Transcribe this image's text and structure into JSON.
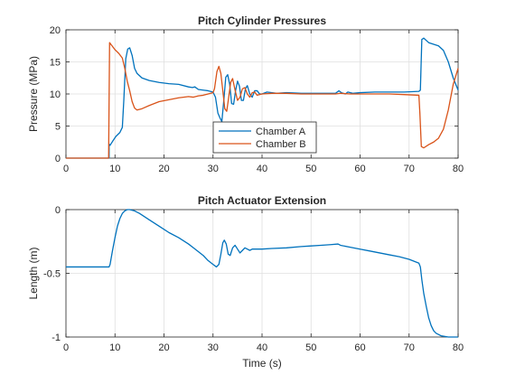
{
  "figure": {
    "background": "#ffffff",
    "axes_color": "#262626",
    "grid_color": "#dfdfdf"
  },
  "chart_data": [
    {
      "type": "line",
      "title": "Pitch Cylinder Pressures",
      "xlabel": "",
      "ylabel": "Pressure (MPa)",
      "xlim": [
        0,
        80
      ],
      "ylim": [
        0,
        20
      ],
      "xticks": [
        0,
        10,
        20,
        30,
        40,
        50,
        60,
        70,
        80
      ],
      "yticks": [
        0,
        5,
        10,
        15,
        20
      ],
      "grid": true,
      "legend": {
        "placement": "bottom-center",
        "entries": [
          "Chamber A",
          "Chamber B"
        ]
      },
      "series": [
        {
          "name": "Chamber A",
          "color": "#0072BD",
          "points": [
            [
              0,
              0
            ],
            [
              8.8,
              0
            ],
            [
              8.8,
              2.2
            ],
            [
              9.0,
              2.0
            ],
            [
              9.5,
              2.6
            ],
            [
              10.2,
              3.4
            ],
            [
              11.0,
              4.0
            ],
            [
              11.5,
              4.8
            ],
            [
              11.8,
              9.0
            ],
            [
              12.2,
              15.5
            ],
            [
              12.6,
              17.0
            ],
            [
              13.0,
              17.2
            ],
            [
              13.5,
              16.0
            ],
            [
              14.0,
              14.0
            ],
            [
              14.5,
              13.2
            ],
            [
              15.5,
              12.5
            ],
            [
              17,
              12.1
            ],
            [
              19,
              11.8
            ],
            [
              21,
              11.6
            ],
            [
              23,
              11.5
            ],
            [
              25,
              11.1
            ],
            [
              25.8,
              11.0
            ],
            [
              26.3,
              11.1
            ],
            [
              27,
              10.7
            ],
            [
              28,
              10.6
            ],
            [
              29,
              10.5
            ],
            [
              30,
              10.3
            ],
            [
              30.5,
              9.5
            ],
            [
              31,
              7.0
            ],
            [
              31.4,
              6.3
            ],
            [
              31.8,
              5.7
            ],
            [
              32.2,
              9.0
            ],
            [
              32.6,
              12.6
            ],
            [
              33.0,
              13.0
            ],
            [
              33.4,
              11.5
            ],
            [
              33.8,
              8.5
            ],
            [
              34.2,
              8.4
            ],
            [
              34.6,
              10.5
            ],
            [
              35.0,
              12.0
            ],
            [
              35.4,
              11.2
            ],
            [
              35.8,
              9.0
            ],
            [
              36.2,
              9.0
            ],
            [
              36.6,
              10.8
            ],
            [
              37.0,
              11.3
            ],
            [
              37.5,
              10.0
            ],
            [
              38.0,
              9.5
            ],
            [
              38.5,
              10.5
            ],
            [
              39.0,
              10.5
            ],
            [
              39.5,
              10.0
            ],
            [
              40,
              10.0
            ],
            [
              41,
              10.3
            ],
            [
              43,
              10.1
            ],
            [
              45,
              10.2
            ],
            [
              48,
              10.1
            ],
            [
              50,
              10.1
            ],
            [
              53,
              10.1
            ],
            [
              55,
              10.1
            ],
            [
              55.7,
              10.5
            ],
            [
              56.2,
              10.2
            ],
            [
              57,
              10.0
            ],
            [
              57.5,
              10.3
            ],
            [
              58.5,
              10.1
            ],
            [
              60,
              10.2
            ],
            [
              63,
              10.3
            ],
            [
              66,
              10.3
            ],
            [
              69,
              10.3
            ],
            [
              72,
              10.4
            ],
            [
              72.3,
              10.6
            ],
            [
              72.6,
              18.5
            ],
            [
              73.0,
              18.7
            ],
            [
              74,
              18.0
            ],
            [
              76,
              17.5
            ],
            [
              77,
              16.8
            ],
            [
              78,
              15.0
            ],
            [
              79,
              12.5
            ],
            [
              80,
              10.6
            ]
          ]
        },
        {
          "name": "Chamber B",
          "color": "#D95319",
          "points": [
            [
              0,
              0
            ],
            [
              8.7,
              0
            ],
            [
              8.9,
              18.0
            ],
            [
              9.3,
              17.6
            ],
            [
              10.0,
              16.9
            ],
            [
              10.8,
              16.3
            ],
            [
              11.5,
              15.6
            ],
            [
              12.0,
              14.0
            ],
            [
              12.5,
              12.0
            ],
            [
              13.0,
              10.5
            ],
            [
              13.5,
              8.8
            ],
            [
              14.0,
              7.8
            ],
            [
              14.5,
              7.5
            ],
            [
              15.5,
              7.7
            ],
            [
              17,
              8.2
            ],
            [
              19,
              8.8
            ],
            [
              21,
              9.1
            ],
            [
              23,
              9.4
            ],
            [
              25,
              9.6
            ],
            [
              26,
              9.5
            ],
            [
              27,
              9.7
            ],
            [
              28,
              9.8
            ],
            [
              29,
              10.0
            ],
            [
              30,
              10.2
            ],
            [
              30.3,
              10.8
            ],
            [
              30.8,
              13.5
            ],
            [
              31.2,
              14.3
            ],
            [
              31.6,
              13.2
            ],
            [
              32.0,
              10.5
            ],
            [
              32.4,
              7.7
            ],
            [
              32.8,
              7.3
            ],
            [
              33.2,
              9.5
            ],
            [
              33.6,
              11.8
            ],
            [
              34.0,
              12.4
            ],
            [
              34.5,
              10.6
            ],
            [
              35.0,
              9.0
            ],
            [
              35.5,
              9.5
            ],
            [
              36.0,
              10.8
            ],
            [
              36.5,
              11.0
            ],
            [
              37.0,
              10.0
            ],
            [
              37.5,
              9.5
            ],
            [
              38,
              10.2
            ],
            [
              38.5,
              10.3
            ],
            [
              39.0,
              9.8
            ],
            [
              40,
              10.0
            ],
            [
              42,
              10.1
            ],
            [
              45,
              10.1
            ],
            [
              48,
              10.0
            ],
            [
              50,
              10.0
            ],
            [
              53,
              10.0
            ],
            [
              55,
              10.0
            ],
            [
              56,
              10.1
            ],
            [
              58,
              10.0
            ],
            [
              60,
              10.0
            ],
            [
              63,
              10.0
            ],
            [
              66,
              10.0
            ],
            [
              69,
              9.9
            ],
            [
              72,
              9.8
            ],
            [
              72.2,
              7.0
            ],
            [
              72.5,
              1.8
            ],
            [
              73,
              1.6
            ],
            [
              74,
              2.1
            ],
            [
              75,
              2.5
            ],
            [
              76,
              3.1
            ],
            [
              77,
              4.5
            ],
            [
              78,
              7.5
            ],
            [
              79,
              11.5
            ],
            [
              80,
              14.0
            ]
          ]
        }
      ]
    },
    {
      "type": "line",
      "title": "Pitch Actuator Extension",
      "xlabel": "Time (s)",
      "ylabel": "Length (m)",
      "xlim": [
        0,
        80
      ],
      "ylim": [
        -1,
        0
      ],
      "xticks": [
        0,
        10,
        20,
        30,
        40,
        50,
        60,
        70,
        80
      ],
      "yticks": [
        -1,
        -0.5,
        0
      ],
      "ytick_labels": [
        "-1",
        "-0.5",
        "0"
      ],
      "grid": true,
      "series": [
        {
          "color": "#0072BD",
          "points": [
            [
              0,
              -0.45
            ],
            [
              8.8,
              -0.45
            ],
            [
              9.0,
              -0.43
            ],
            [
              9.5,
              -0.32
            ],
            [
              10,
              -0.22
            ],
            [
              10.5,
              -0.13
            ],
            [
              11,
              -0.07
            ],
            [
              11.5,
              -0.03
            ],
            [
              12,
              -0.01
            ],
            [
              12.5,
              0.0
            ],
            [
              13,
              0.0
            ],
            [
              14,
              -0.01
            ],
            [
              15,
              -0.03
            ],
            [
              17,
              -0.08
            ],
            [
              19,
              -0.13
            ],
            [
              21,
              -0.18
            ],
            [
              23,
              -0.22
            ],
            [
              25,
              -0.27
            ],
            [
              26,
              -0.3
            ],
            [
              27,
              -0.33
            ],
            [
              28,
              -0.36
            ],
            [
              29,
              -0.4
            ],
            [
              30,
              -0.43
            ],
            [
              30.7,
              -0.45
            ],
            [
              31.2,
              -0.43
            ],
            [
              31.6,
              -0.35
            ],
            [
              32,
              -0.26
            ],
            [
              32.3,
              -0.24
            ],
            [
              32.7,
              -0.27
            ],
            [
              33.1,
              -0.35
            ],
            [
              33.5,
              -0.36
            ],
            [
              34,
              -0.3
            ],
            [
              34.5,
              -0.28
            ],
            [
              35,
              -0.31
            ],
            [
              35.5,
              -0.34
            ],
            [
              36,
              -0.32
            ],
            [
              36.5,
              -0.3
            ],
            [
              37,
              -0.31
            ],
            [
              37.5,
              -0.32
            ],
            [
              38,
              -0.31
            ],
            [
              38.5,
              -0.31
            ],
            [
              39,
              -0.31
            ],
            [
              40,
              -0.31
            ],
            [
              42,
              -0.305
            ],
            [
              45,
              -0.3
            ],
            [
              48,
              -0.29
            ],
            [
              50,
              -0.285
            ],
            [
              52,
              -0.28
            ],
            [
              54,
              -0.275
            ],
            [
              55.5,
              -0.27
            ],
            [
              56,
              -0.28
            ],
            [
              58,
              -0.295
            ],
            [
              60,
              -0.31
            ],
            [
              62,
              -0.325
            ],
            [
              64,
              -0.34
            ],
            [
              66,
              -0.355
            ],
            [
              68,
              -0.37
            ],
            [
              70,
              -0.39
            ],
            [
              72,
              -0.42
            ],
            [
              72.3,
              -0.45
            ],
            [
              72.6,
              -0.55
            ],
            [
              73,
              -0.66
            ],
            [
              73.5,
              -0.76
            ],
            [
              74,
              -0.85
            ],
            [
              74.5,
              -0.91
            ],
            [
              75,
              -0.95
            ],
            [
              75.5,
              -0.97
            ],
            [
              76.5,
              -0.99
            ],
            [
              78,
              -1.0
            ],
            [
              80,
              -1.0
            ]
          ]
        }
      ]
    }
  ]
}
